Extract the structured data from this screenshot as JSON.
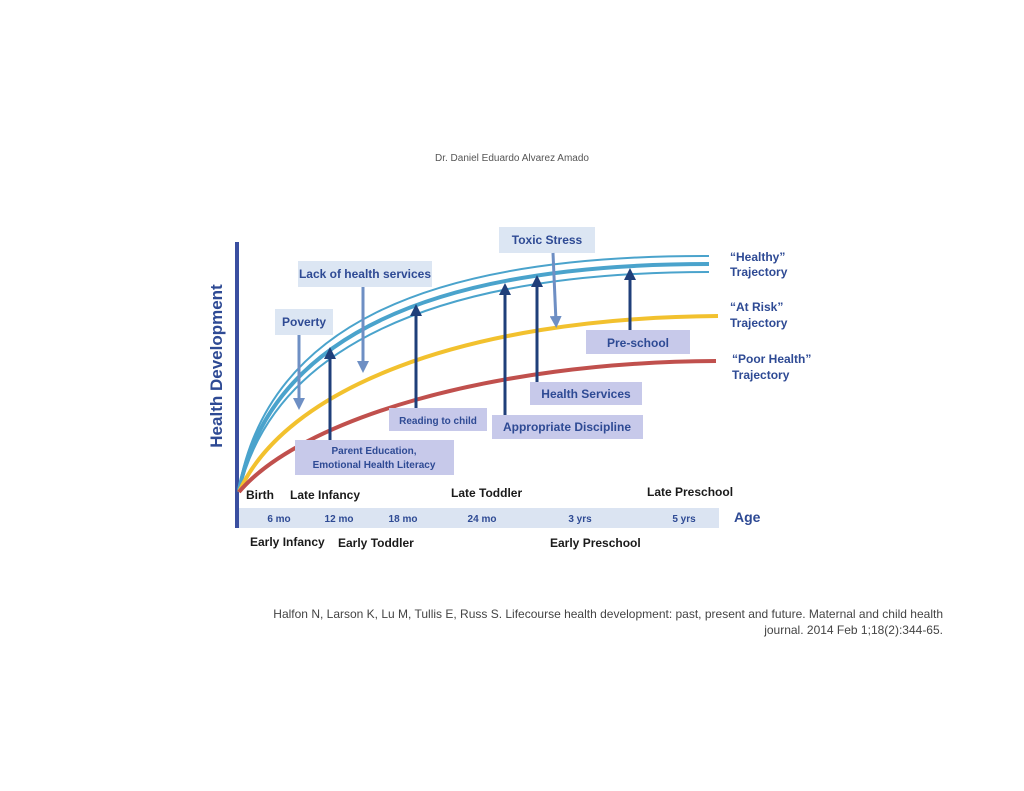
{
  "header": {
    "author": "Dr. Daniel Eduardo Alvarez Amado"
  },
  "chart": {
    "y_axis_label": "Health Development",
    "x_axis_label": "Age",
    "trajectories": {
      "healthy": {
        "line1": "“Healthy”",
        "line2": "Trajectory",
        "color": "#4aa3cc"
      },
      "at_risk": {
        "line1": "“At Risk”",
        "line2": "Trajectory",
        "color": "#f2c12e"
      },
      "poor": {
        "line1": "“Poor Health”",
        "line2": "Trajectory",
        "color": "#c0504d"
      }
    },
    "ages": [
      "6 mo",
      "12 mo",
      "18 mo",
      "24 mo",
      "3 yrs",
      "5 yrs"
    ],
    "stages_top": [
      "Birth",
      "Late Infancy",
      "Late Toddler",
      "Late Preschool"
    ],
    "stages_bottom": [
      "Early Infancy",
      "Early Toddler",
      "Early Preschool"
    ],
    "risk_factors": {
      "poverty": "Poverty",
      "lack_services": "Lack of health services",
      "toxic_stress": "Toxic Stress"
    },
    "protective_factors": {
      "parent_education_1": "Parent Education,",
      "parent_education_2": "Emotional Health Literacy",
      "reading": "Reading to child",
      "discipline": "Appropriate Discipline",
      "health_services": "Health Services",
      "preschool": "Pre-school"
    },
    "colors": {
      "axis": "#3a4fa0",
      "risk_box": "#dce6f3",
      "protective_box": "#c7c9ea",
      "risk_arrow": "#6e8fc4",
      "protective_arrow": "#1f3f7a",
      "age_band": "#dbe4f2"
    }
  },
  "footer": {
    "citation_line1": "Halfon N, Larson K, Lu M, Tullis E, Russ S. Lifecourse health development: past, present and future. Maternal and child health",
    "citation_line2": "journal. 2014 Feb 1;18(2):344-65."
  }
}
